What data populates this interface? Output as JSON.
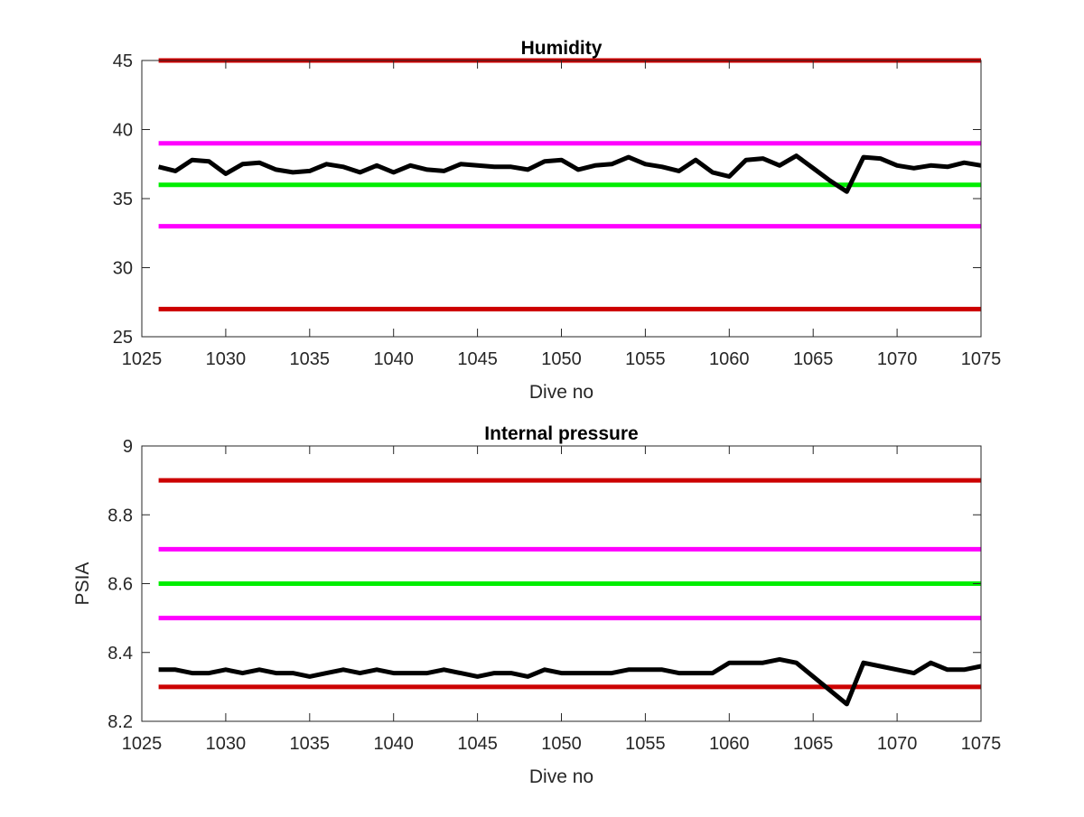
{
  "chart_data": [
    {
      "type": "line",
      "title": "Humidity",
      "xlabel": "Dive no",
      "ylabel": "",
      "xlim": [
        1025,
        1075
      ],
      "ylim": [
        25,
        45
      ],
      "xticks": [
        1025,
        1030,
        1035,
        1040,
        1045,
        1050,
        1055,
        1060,
        1065,
        1070,
        1075
      ],
      "yticks": [
        25,
        30,
        35,
        40,
        45
      ],
      "grid": false,
      "series": [
        {
          "color": "#000000",
          "x": [
            1026,
            1027,
            1028,
            1029,
            1030,
            1031,
            1032,
            1033,
            1034,
            1035,
            1036,
            1037,
            1038,
            1039,
            1040,
            1041,
            1042,
            1043,
            1044,
            1045,
            1046,
            1047,
            1048,
            1049,
            1050,
            1051,
            1052,
            1053,
            1054,
            1055,
            1056,
            1057,
            1058,
            1059,
            1060,
            1061,
            1062,
            1063,
            1064,
            1065,
            1066,
            1067,
            1068,
            1069,
            1070,
            1071,
            1072,
            1073,
            1074,
            1075
          ],
          "values": [
            37.3,
            37.0,
            37.8,
            37.7,
            36.8,
            37.5,
            37.6,
            37.1,
            36.9,
            37.0,
            37.5,
            37.3,
            36.9,
            37.4,
            36.9,
            37.4,
            37.1,
            37.0,
            37.5,
            37.4,
            37.3,
            37.3,
            37.1,
            37.7,
            37.8,
            37.1,
            37.4,
            37.5,
            38.0,
            37.5,
            37.3,
            37.0,
            37.8,
            36.9,
            36.6,
            37.8,
            37.9,
            37.4,
            38.1,
            37.2,
            36.3,
            35.5,
            38.0,
            37.9,
            37.4,
            37.2,
            37.4,
            37.3,
            37.6,
            37.4
          ]
        },
        {
          "color": "#cc0000",
          "x": [
            1026,
            1075
          ],
          "values": [
            45,
            45
          ]
        },
        {
          "color": "#ff00ff",
          "x": [
            1026,
            1075
          ],
          "values": [
            39,
            39
          ]
        },
        {
          "color": "#00ee00",
          "x": [
            1026,
            1075
          ],
          "values": [
            36,
            36
          ]
        },
        {
          "color": "#ff00ff",
          "x": [
            1026,
            1075
          ],
          "values": [
            33,
            33
          ]
        },
        {
          "color": "#cc0000",
          "x": [
            1026,
            1075
          ],
          "values": [
            27,
            27
          ]
        }
      ]
    },
    {
      "type": "line",
      "title": "Internal pressure",
      "xlabel": "Dive no",
      "ylabel": "PSIA",
      "xlim": [
        1025,
        1075
      ],
      "ylim": [
        8.2,
        9
      ],
      "xticks": [
        1025,
        1030,
        1035,
        1040,
        1045,
        1050,
        1055,
        1060,
        1065,
        1070,
        1075
      ],
      "yticks": [
        8.2,
        8.4,
        8.6,
        8.8,
        9
      ],
      "grid": false,
      "series": [
        {
          "color": "#000000",
          "x": [
            1026,
            1027,
            1028,
            1029,
            1030,
            1031,
            1032,
            1033,
            1034,
            1035,
            1036,
            1037,
            1038,
            1039,
            1040,
            1041,
            1042,
            1043,
            1044,
            1045,
            1046,
            1047,
            1048,
            1049,
            1050,
            1051,
            1052,
            1053,
            1054,
            1055,
            1056,
            1057,
            1058,
            1059,
            1060,
            1061,
            1062,
            1063,
            1064,
            1065,
            1066,
            1067,
            1068,
            1069,
            1070,
            1071,
            1072,
            1073,
            1074,
            1075
          ],
          "values": [
            8.35,
            8.35,
            8.34,
            8.34,
            8.35,
            8.34,
            8.35,
            8.34,
            8.34,
            8.33,
            8.34,
            8.35,
            8.34,
            8.35,
            8.34,
            8.34,
            8.34,
            8.35,
            8.34,
            8.33,
            8.34,
            8.34,
            8.33,
            8.35,
            8.34,
            8.34,
            8.34,
            8.34,
            8.35,
            8.35,
            8.35,
            8.34,
            8.34,
            8.34,
            8.37,
            8.37,
            8.37,
            8.38,
            8.37,
            8.33,
            8.29,
            8.25,
            8.37,
            8.36,
            8.35,
            8.34,
            8.37,
            8.35,
            8.35,
            8.36
          ]
        },
        {
          "color": "#cc0000",
          "x": [
            1026,
            1075
          ],
          "values": [
            8.9,
            8.9
          ]
        },
        {
          "color": "#ff00ff",
          "x": [
            1026,
            1075
          ],
          "values": [
            8.7,
            8.7
          ]
        },
        {
          "color": "#00ee00",
          "x": [
            1026,
            1075
          ],
          "values": [
            8.6,
            8.6
          ]
        },
        {
          "color": "#ff00ff",
          "x": [
            1026,
            1075
          ],
          "values": [
            8.5,
            8.5
          ]
        },
        {
          "color": "#cc0000",
          "x": [
            1026,
            1075
          ],
          "values": [
            8.3,
            8.3
          ]
        }
      ]
    }
  ]
}
